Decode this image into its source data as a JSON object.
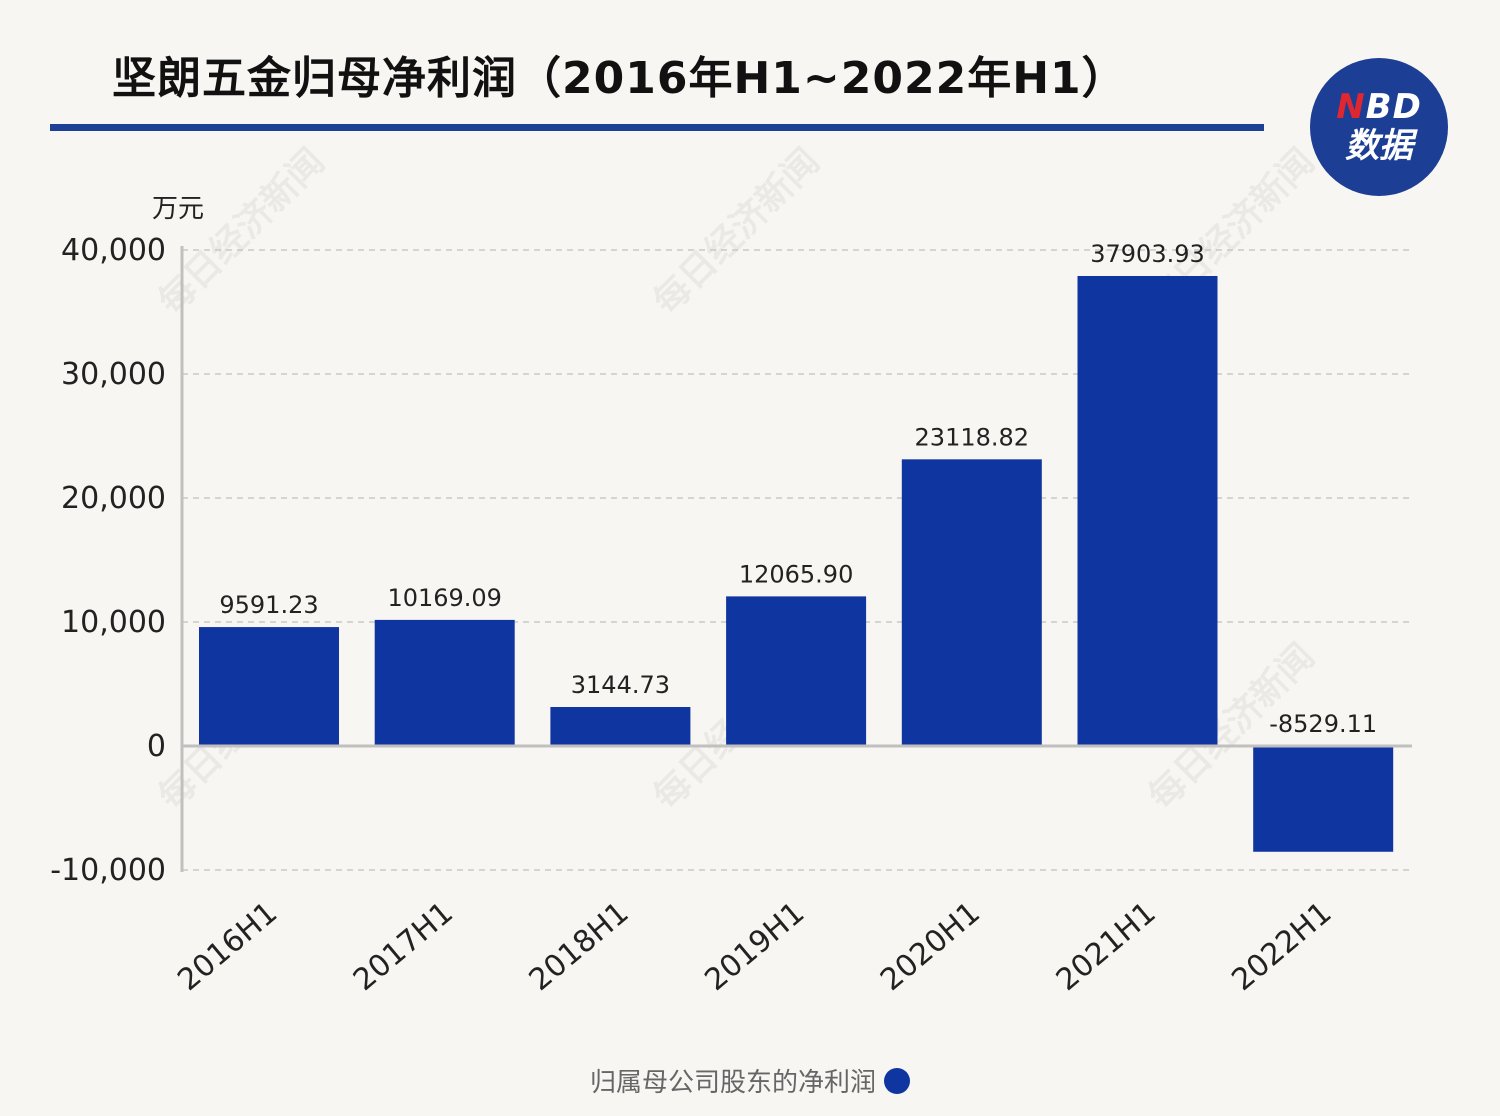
{
  "header": {
    "title": "坚朗五金归母净利润（2016年H1~2022年H1）",
    "logo_line1_n": "N",
    "logo_line1_rest": "BD",
    "logo_line2": "数据"
  },
  "unit_label": "万元",
  "watermark_text": "每日经济新闻",
  "colors": {
    "bar": "#0f35a0",
    "title_rule": "#1e3f96",
    "logo_bg": "#1c3e94",
    "logo_accent": "#e0262f",
    "background": "#f8f6f2",
    "grid": "#c8c8c8",
    "axis": "#c0c0c0"
  },
  "chart_data": {
    "type": "bar",
    "categories": [
      "2016H1",
      "2017H1",
      "2018H1",
      "2019H1",
      "2020H1",
      "2021H1",
      "2022H1"
    ],
    "series": [
      {
        "name": "归属母公司股东的净利润",
        "values": [
          9591.23,
          10169.09,
          3144.73,
          12065.9,
          23118.82,
          37903.93,
          -8529.11
        ],
        "labels": [
          "9591.23",
          "10169.09",
          "3144.73",
          "12065.90",
          "23118.82",
          "37903.93",
          "-8529.11"
        ]
      }
    ],
    "ylim": [
      -10000,
      40000
    ],
    "yticks": [
      -10000,
      0,
      10000,
      20000,
      30000,
      40000
    ],
    "ytick_labels": [
      "-10,000",
      "0",
      "10,000",
      "20,000",
      "30,000",
      "40,000"
    ],
    "grid": true,
    "legend_position": "bottom-center"
  }
}
